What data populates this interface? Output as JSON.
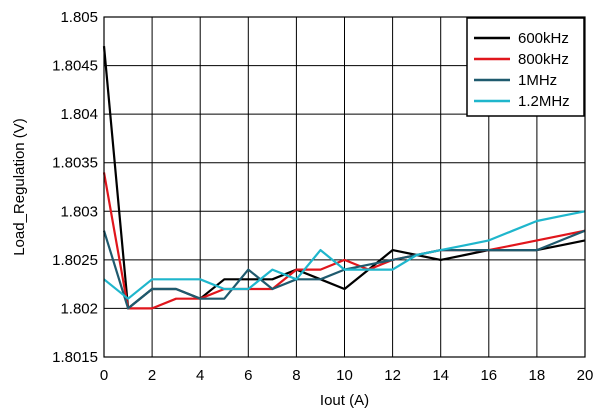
{
  "chart_data": {
    "type": "line",
    "xlabel": "Iout (A)",
    "ylabel": "Load_Regulation (V)",
    "xlim": [
      0,
      20
    ],
    "ylim": [
      1.8015,
      1.805
    ],
    "x_ticks": [
      0,
      2,
      4,
      6,
      8,
      10,
      12,
      14,
      16,
      18,
      20
    ],
    "y_ticks": [
      1.8015,
      1.802,
      1.8025,
      1.803,
      1.8035,
      1.804,
      1.8045,
      1.805
    ],
    "y_tick_labels": [
      "1.8015",
      "1.802",
      "1.8025",
      "1.803",
      "1.8035",
      "1.804",
      "1.8045",
      "1.805"
    ],
    "x_tick_labels": [
      "0",
      "2",
      "4",
      "6",
      "8",
      "10",
      "12",
      "14",
      "16",
      "18",
      "20"
    ],
    "grid": true,
    "legend_position": "top-right",
    "series": [
      {
        "name": "600kHz",
        "color": "#000000",
        "x": [
          0,
          1,
          2,
          3,
          4,
          5,
          6,
          7,
          8,
          9,
          10,
          11,
          12,
          13,
          14,
          15,
          16,
          17,
          18,
          19,
          20
        ],
        "y": [
          1.8047,
          1.802,
          1.8022,
          1.8022,
          1.8021,
          1.8023,
          1.8023,
          1.8023,
          1.8024,
          1.8023,
          1.8022,
          1.8024,
          1.8026,
          1.80255,
          1.8025,
          1.80255,
          1.8026,
          1.8026,
          1.8026,
          1.80265,
          1.8027
        ]
      },
      {
        "name": "800kHz",
        "color": "#e0161c",
        "x": [
          0,
          1,
          2,
          3,
          4,
          5,
          6,
          7,
          8,
          9,
          10,
          11,
          12,
          13,
          14,
          15,
          16,
          17,
          18,
          19,
          20
        ],
        "y": [
          1.8034,
          1.802,
          1.802,
          1.8021,
          1.8021,
          1.8022,
          1.8022,
          1.8022,
          1.8024,
          1.8024,
          1.8025,
          1.8024,
          1.8025,
          1.80255,
          1.8026,
          1.8026,
          1.8026,
          1.80265,
          1.8027,
          1.80275,
          1.8028
        ]
      },
      {
        "name": "1MHz",
        "color": "#1f5a6e",
        "x": [
          0,
          1,
          2,
          3,
          4,
          5,
          6,
          7,
          8,
          9,
          10,
          11,
          12,
          13,
          14,
          15,
          16,
          17,
          18,
          19,
          20
        ],
        "y": [
          1.8028,
          1.802,
          1.8022,
          1.8022,
          1.8021,
          1.8021,
          1.8024,
          1.8022,
          1.8023,
          1.8023,
          1.8024,
          1.80245,
          1.8025,
          1.80255,
          1.8026,
          1.8026,
          1.8026,
          1.8026,
          1.8026,
          1.8027,
          1.8028
        ]
      },
      {
        "name": "1.2MHz",
        "color": "#1fb6cc",
        "x": [
          0,
          1,
          2,
          3,
          4,
          5,
          6,
          7,
          8,
          9,
          10,
          11,
          12,
          13,
          14,
          15,
          16,
          17,
          18,
          19,
          20
        ],
        "y": [
          1.8023,
          1.8021,
          1.8023,
          1.8023,
          1.8023,
          1.8022,
          1.8022,
          1.8024,
          1.8023,
          1.8026,
          1.8024,
          1.8024,
          1.8024,
          1.80255,
          1.8026,
          1.80265,
          1.8027,
          1.8028,
          1.8029,
          1.80295,
          1.803
        ]
      }
    ]
  }
}
